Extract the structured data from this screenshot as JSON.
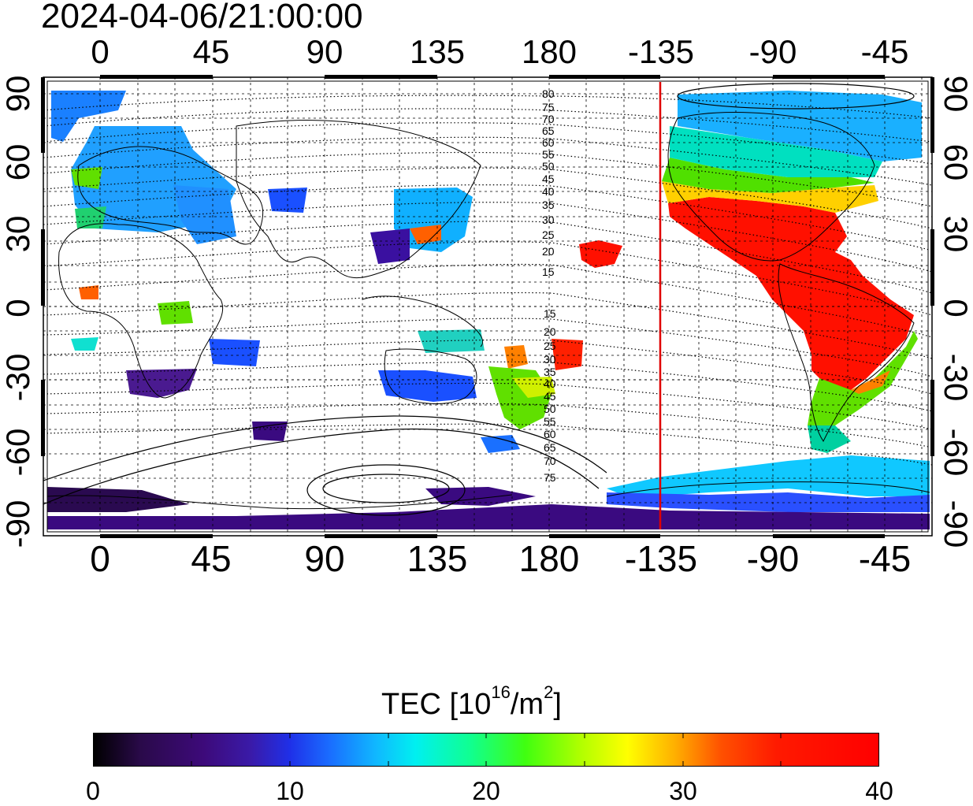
{
  "title": "2024-04-06/21:00:00",
  "map": {
    "x_ticks": [
      "0",
      "45",
      "90",
      "135",
      "180",
      "-135",
      "-90",
      "-45"
    ],
    "y_ticks": [
      "90",
      "60",
      "30",
      "0",
      "-30",
      "-60",
      "-90"
    ],
    "contour_labels_upper": [
      "80",
      "75",
      "70",
      "65",
      "60",
      "55",
      "50",
      "45",
      "40",
      "35",
      "30",
      "25",
      "20",
      "15"
    ],
    "contour_labels_lower": [
      "15",
      "20",
      "25",
      "30",
      "35",
      "40",
      "45",
      "50",
      "55",
      "60",
      "65",
      "70",
      "75"
    ],
    "terminator_color": "#e00000"
  },
  "colorbar": {
    "title_prefix": "TEC  [10",
    "title_exp": "16",
    "title_mid": "/m",
    "title_exp2": "2",
    "title_suffix": "]",
    "ticks": [
      "0",
      "10",
      "20",
      "30",
      "40"
    ],
    "range": [
      0,
      40
    ]
  }
}
